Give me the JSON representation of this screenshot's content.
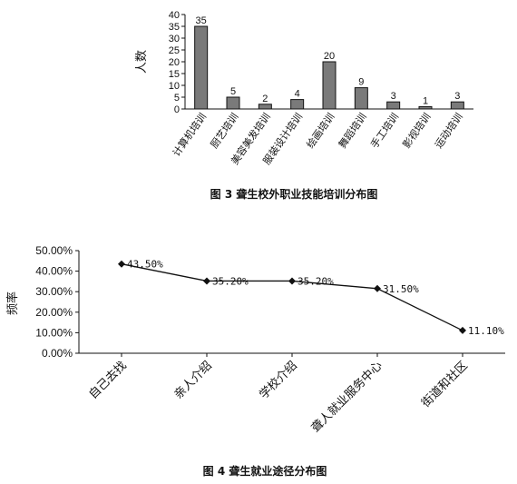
{
  "chart_data": [
    {
      "type": "bar",
      "caption": "图 3  聋生校外职业技能培训分布图",
      "ylabel": "人数",
      "ylim": [
        0,
        40
      ],
      "yticks": [
        "0",
        "5",
        "10",
        "15",
        "20",
        "25",
        "30",
        "35",
        "40"
      ],
      "categories": [
        "计算机培训",
        "厨艺培训",
        "美容美发培训",
        "服装设计培训",
        "绘画培训",
        "舞蹈培训",
        "手工培训",
        "影视培训",
        "运动培训"
      ],
      "values": [
        35,
        5,
        2,
        4,
        20,
        9,
        3,
        1,
        3
      ],
      "value_labels": [
        "35",
        "5",
        "2",
        "4",
        "20",
        "9",
        "3",
        "1",
        "3"
      ],
      "bar_color": "#7a7a7a"
    },
    {
      "type": "line",
      "caption": "图 4  聋生就业途径分布图",
      "ylabel": "频率",
      "ylim": [
        0,
        50
      ],
      "yticks": [
        "0.00%",
        "10.00%",
        "20.00%",
        "30.00%",
        "40.00%",
        "50.00%"
      ],
      "categories": [
        "自己去找",
        "亲人介绍",
        "学校介绍",
        "聋人就业服务中心",
        "街道和社区"
      ],
      "values": [
        43.5,
        35.2,
        35.2,
        31.5,
        11.1
      ],
      "value_labels": [
        "43.50%",
        "35.20%",
        "35.20%",
        "31.50%",
        "11.10%"
      ],
      "line_color": "#111111"
    }
  ]
}
